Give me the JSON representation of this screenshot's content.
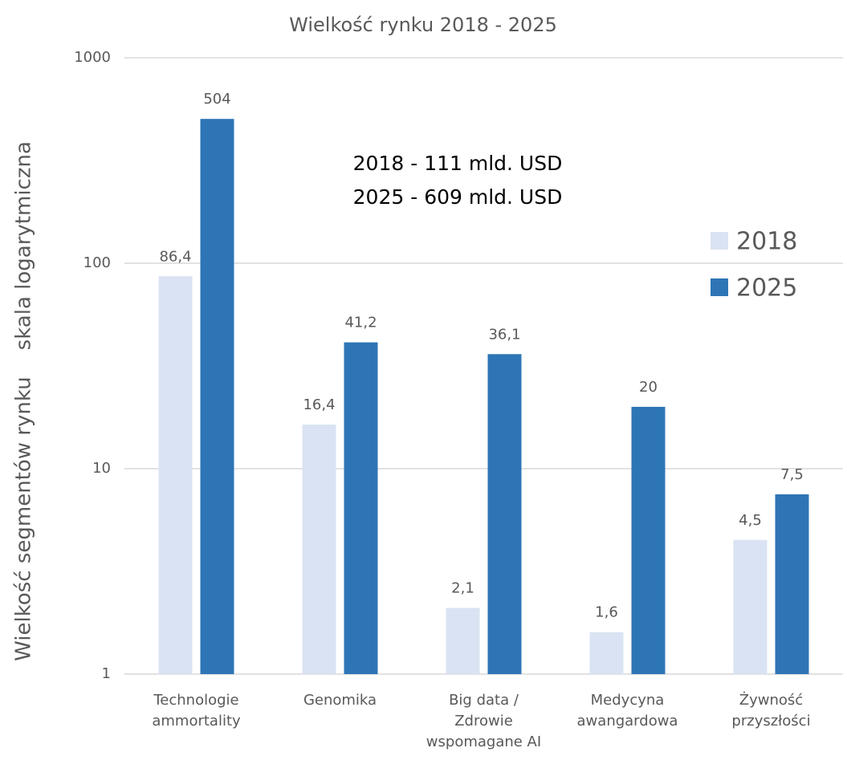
{
  "chart_data": {
    "type": "bar",
    "title": "Wielkość rynku 2018 - 2025",
    "y_label": "Wielkość segmentów rynku    skala logarytmiczna",
    "annotations": [
      "2018 - 111 mld. USD",
      "2025 - 609 mld. USD"
    ],
    "categories": [
      "Technologie\nammortality",
      "Genomika",
      "Big data /\nZdrowie\nwspomagane AI",
      "Medycyna\nawangardowa",
      "Żywność\nprzyszłości"
    ],
    "series": [
      {
        "name": "2018",
        "color": "#dae3f3",
        "values": [
          86.4,
          16.4,
          2.1,
          1.6,
          4.5
        ],
        "value_labels": [
          "86,4",
          "16,4",
          "2,1",
          "1,6",
          "4,5"
        ]
      },
      {
        "name": "2025",
        "color": "#2e75b6",
        "values": [
          504,
          41.2,
          36.1,
          20,
          7.5
        ],
        "value_labels": [
          "504",
          "41,2",
          "36,1",
          "20",
          "7,5"
        ]
      }
    ],
    "ylim": [
      1,
      1000
    ],
    "yticks": [
      1,
      10,
      100,
      1000
    ],
    "log_scale": true,
    "grid": true,
    "legend": "right"
  }
}
